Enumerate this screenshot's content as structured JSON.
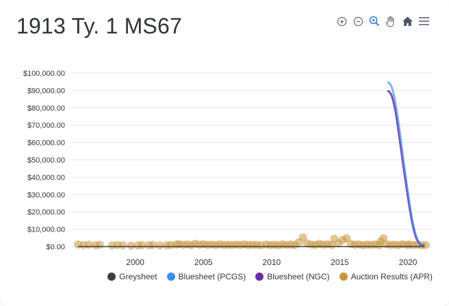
{
  "title": "1913 Ty. 1 MS67",
  "toolbar": {
    "icons": [
      "zoom-in-icon",
      "zoom-out-icon",
      "zoom-selection-icon",
      "pan-hand-icon",
      "home-reset-icon",
      "menu-icon"
    ]
  },
  "colors": {
    "greysheet": "#3a3f44",
    "bluesheet_pcgs": "#3d8df0",
    "bluesheet_ngc": "#6a2ea0",
    "auction": "#c8963e",
    "grid": "#e6e6e6",
    "axis_text": "#333333"
  },
  "chart_data": {
    "type": "scatter",
    "title": "1913 Ty. 1 MS67",
    "xlabel": "",
    "ylabel": "",
    "xlim": [
      1995.3,
      2021.8
    ],
    "ylim": [
      0,
      100000
    ],
    "x_ticks": [
      2000,
      2005,
      2010,
      2015,
      2020
    ],
    "x_tick_labels": [
      "2000",
      "2005",
      "2010",
      "2015",
      "2020"
    ],
    "y_ticks": [
      0,
      10000,
      20000,
      30000,
      40000,
      50000,
      60000,
      70000,
      80000,
      90000,
      100000
    ],
    "y_tick_labels": [
      "$0.00",
      "$10,000.00",
      "$20,000.00",
      "$30,000.00",
      "$40,000.00",
      "$50,000.00",
      "$60,000.00",
      "$70,000.00",
      "$80,000.00",
      "$90,000.00",
      "$100,000.00"
    ],
    "grid": true,
    "legend": "bottom-right",
    "series": [
      {
        "name": "Greysheet",
        "type": "line",
        "points": [
          [
            1995.8,
            0
          ],
          [
            2021.2,
            0
          ]
        ]
      },
      {
        "name": "Bluesheet (PCGS)",
        "type": "line",
        "points": [
          [
            2018.5,
            95000
          ],
          [
            2018.8,
            92000
          ],
          [
            2019.1,
            82000
          ],
          [
            2019.4,
            66000
          ],
          [
            2019.7,
            48000
          ],
          [
            2020.0,
            31000
          ],
          [
            2020.3,
            16000
          ],
          [
            2020.6,
            6000
          ],
          [
            2020.9,
            1500
          ],
          [
            2021.2,
            800
          ]
        ]
      },
      {
        "name": "Bluesheet (NGC)",
        "type": "line",
        "points": [
          [
            2018.5,
            90000
          ],
          [
            2018.8,
            87000
          ],
          [
            2019.1,
            77000
          ],
          [
            2019.4,
            61000
          ],
          [
            2019.7,
            44000
          ],
          [
            2020.0,
            28000
          ],
          [
            2020.3,
            14000
          ],
          [
            2020.6,
            5000
          ],
          [
            2020.9,
            1200
          ],
          [
            2021.2,
            600
          ]
        ]
      },
      {
        "name": "Auction Results (APR)",
        "type": "scatter",
        "points": [
          [
            1995.8,
            1200
          ],
          [
            1996.2,
            900
          ],
          [
            1996.6,
            1100
          ],
          [
            1997.1,
            800
          ],
          [
            1997.4,
            1000
          ],
          [
            1998.3,
            700
          ],
          [
            1998.7,
            900
          ],
          [
            1999.1,
            800
          ],
          [
            1999.7,
            600
          ],
          [
            2000.2,
            700
          ],
          [
            2000.5,
            900
          ],
          [
            2001.0,
            800
          ],
          [
            2001.3,
            1000
          ],
          [
            2001.8,
            700
          ],
          [
            2002.3,
            800
          ],
          [
            2002.6,
            900
          ],
          [
            2003.0,
            1100
          ],
          [
            2003.2,
            1500
          ],
          [
            2003.5,
            1000
          ],
          [
            2003.8,
            1300
          ],
          [
            2004.1,
            900
          ],
          [
            2004.4,
            1600
          ],
          [
            2004.7,
            1100
          ],
          [
            2005.0,
            1400
          ],
          [
            2005.3,
            1000
          ],
          [
            2005.6,
            1200
          ],
          [
            2005.9,
            900
          ],
          [
            2006.2,
            1300
          ],
          [
            2006.5,
            1000
          ],
          [
            2006.8,
            1100
          ],
          [
            2007.1,
            900
          ],
          [
            2007.4,
            1200
          ],
          [
            2007.7,
            1000
          ],
          [
            2008.0,
            1300
          ],
          [
            2008.3,
            900
          ],
          [
            2008.6,
            1100
          ],
          [
            2008.9,
            1000
          ],
          [
            2009.2,
            800
          ],
          [
            2009.6,
            1200
          ],
          [
            2009.9,
            900
          ],
          [
            2010.2,
            1100
          ],
          [
            2010.5,
            800
          ],
          [
            2010.8,
            1300
          ],
          [
            2011.1,
            1000
          ],
          [
            2011.4,
            1200
          ],
          [
            2011.7,
            900
          ],
          [
            2012.0,
            2500
          ],
          [
            2012.3,
            5200
          ],
          [
            2012.6,
            1800
          ],
          [
            2012.9,
            1200
          ],
          [
            2013.2,
            1000
          ],
          [
            2013.5,
            1600
          ],
          [
            2013.8,
            1100
          ],
          [
            2014.1,
            1400
          ],
          [
            2014.4,
            1000
          ],
          [
            2014.6,
            4500
          ],
          [
            2014.9,
            1800
          ],
          [
            2015.2,
            3800
          ],
          [
            2015.5,
            4800
          ],
          [
            2015.8,
            1500
          ],
          [
            2016.1,
            1100
          ],
          [
            2016.4,
            1300
          ],
          [
            2016.7,
            900
          ],
          [
            2017.0,
            1200
          ],
          [
            2017.3,
            1000
          ],
          [
            2017.6,
            1300
          ],
          [
            2017.9,
            900
          ],
          [
            2018.0,
            3000
          ],
          [
            2018.2,
            4800
          ],
          [
            2018.4,
            1400
          ],
          [
            2018.7,
            1000
          ],
          [
            2019.0,
            1200
          ],
          [
            2019.3,
            900
          ],
          [
            2019.6,
            1400
          ],
          [
            2019.9,
            1000
          ],
          [
            2020.1,
            1200
          ],
          [
            2020.4,
            900
          ],
          [
            2020.7,
            1100
          ],
          [
            2021.0,
            800
          ],
          [
            2021.3,
            900
          ]
        ]
      }
    ]
  }
}
